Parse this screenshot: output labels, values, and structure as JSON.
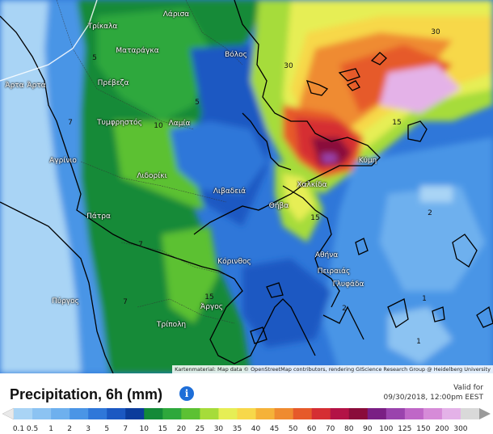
{
  "map": {
    "cities": [
      {
        "name": "Λάρισα"
      },
      {
        "name": "Τρίκαλα"
      },
      {
        "name": "Ματαράγκα"
      },
      {
        "name": "Βόλος"
      },
      {
        "name": "Άρτα"
      },
      {
        "name": "Πρέβεζα"
      },
      {
        "name": "Άρτα"
      },
      {
        "name": "Τυμφρηστός"
      },
      {
        "name": "Λαμία"
      },
      {
        "name": "Αγρίνιο"
      },
      {
        "name": "Λιδορίκι"
      },
      {
        "name": "Λιβαδειά"
      },
      {
        "name": "Χαλκίδα"
      },
      {
        "name": "Κύμη"
      },
      {
        "name": "Θήβα"
      },
      {
        "name": "Πάτρα"
      },
      {
        "name": "Αθήνα"
      },
      {
        "name": "Πειραιάς"
      },
      {
        "name": "Γλυφάδα"
      },
      {
        "name": "Κόρινθος"
      },
      {
        "name": "Άργος"
      },
      {
        "name": "Πύργος"
      },
      {
        "name": "Τρίπολη"
      }
    ],
    "contour_labels": [
      "30",
      "30",
      "15",
      "10",
      "7",
      "5",
      "15",
      "2",
      "7",
      "7",
      "15",
      "2",
      "1",
      "1",
      "5"
    ],
    "attribution": "Kartenmaterial: Map data © OpenStreetMap contributors, rendering GIScience Research Group @ Heidelberg University"
  },
  "legend": {
    "title": "Precipitation, 6h (mm)",
    "info_icon": "info-icon",
    "valid_label": "Valid for",
    "valid_time": "09/30/2018, 12:00pm EEST",
    "ticks": [
      "0.1",
      "0.5",
      "1",
      "2",
      "3",
      "5",
      "7",
      "10",
      "15",
      "20",
      "25",
      "30",
      "35",
      "40",
      "45",
      "50",
      "60",
      "70",
      "80",
      "90",
      "100",
      "125",
      "150",
      "200",
      "300"
    ],
    "colors": [
      "#a9d4f5",
      "#8cc3f2",
      "#6eb0ee",
      "#4a95e6",
      "#2f77d9",
      "#1b58c2",
      "#0b3c9c",
      "#138a38",
      "#2ea83c",
      "#5cc133",
      "#a6dc3a",
      "#e6ee55",
      "#f7d84a",
      "#f5b239",
      "#ef8b30",
      "#e65a2a",
      "#d52e33",
      "#b31246",
      "#8a0c3a",
      "#7a1f84",
      "#9a43ad",
      "#bf67c7",
      "#d68bd8",
      "#e4b2e8",
      "#d9d9d9"
    ],
    "left_arrow_color": "#e9e9e9",
    "right_arrow_color": "#9a9a9a"
  }
}
